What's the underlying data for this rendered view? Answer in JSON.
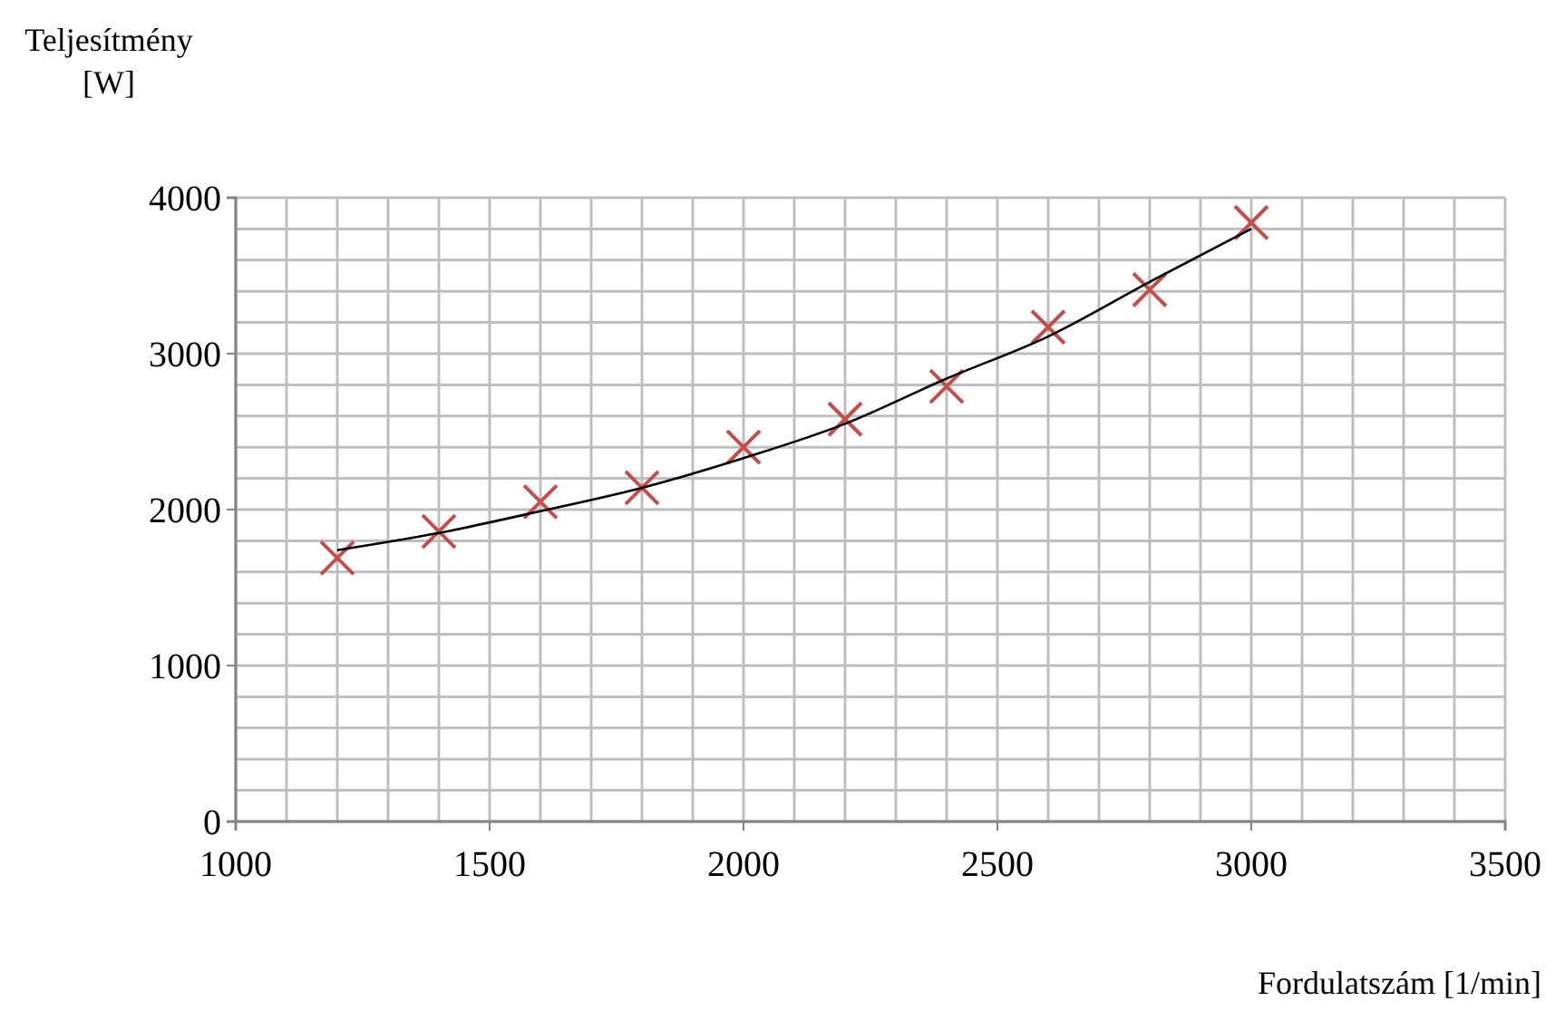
{
  "chart_data": {
    "type": "scatter",
    "xlabel": "Fordulatszám [1/min]",
    "ylabel": "Teljesítmény\n[W]",
    "xlim": [
      1000,
      3500
    ],
    "xticks": [
      1000,
      1500,
      2000,
      2500,
      3000,
      3500
    ],
    "ylim": [
      0,
      4000
    ],
    "yticks": [
      0,
      1000,
      2000,
      3000,
      4000
    ],
    "grid": true,
    "series": [
      {
        "color": "#c0504d",
        "marker": "cross",
        "x": [
          1200,
          1400,
          1600,
          1800,
          2000,
          2200,
          2400,
          2600,
          2800,
          3000
        ],
        "values": [
          1690,
          1860,
          2050,
          2140,
          2400,
          2580,
          2790,
          3170,
          3410,
          3840
        ]
      },
      {
        "type": "line",
        "color": "#000000",
        "marker": "none",
        "x": [
          1200,
          1400,
          1600,
          1800,
          2000,
          2200,
          2400,
          2600,
          2800,
          3000
        ],
        "values": [
          1740,
          1850,
          1990,
          2140,
          2330,
          2550,
          2840,
          3110,
          3460,
          3800
        ]
      }
    ]
  }
}
